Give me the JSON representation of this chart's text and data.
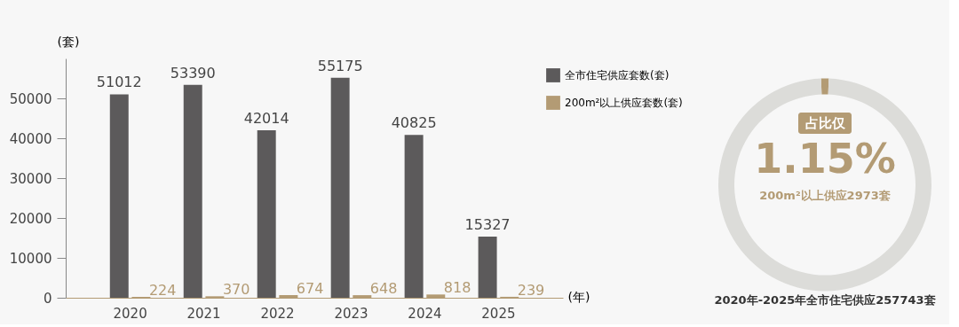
{
  "chart_data": [
    {
      "type": "bar",
      "ylabel": "(套)",
      "xlabel": "(年)",
      "categories": [
        "2020",
        "2021",
        "2022",
        "2023",
        "2024",
        "2025"
      ],
      "series": [
        {
          "name": "全市住宅供应套数(套)",
          "color": "#5c5a5b",
          "values": [
            51012,
            53390,
            42014,
            55175,
            40825,
            15327
          ]
        },
        {
          "name": "200m²以上供应套数(套)",
          "color": "#b39b74",
          "values": [
            224,
            370,
            674,
            648,
            818,
            239
          ]
        }
      ],
      "ylim": [
        0,
        60000
      ],
      "yticks": [
        0,
        10000,
        20000,
        30000,
        40000,
        50000
      ],
      "grid": false,
      "data_labels": true,
      "legend": "top right"
    },
    {
      "type": "donut",
      "categories": [
        null,
        null
      ],
      "values": [
        1.15,
        98.85
      ],
      "colors": [
        "#b39b74",
        "#dcdcd9"
      ],
      "annotations": [
        "占比仅",
        "1.15%",
        "200m²以上供应2973套",
        "2020年-2025年全市住宅供应257743套"
      ]
    }
  ]
}
